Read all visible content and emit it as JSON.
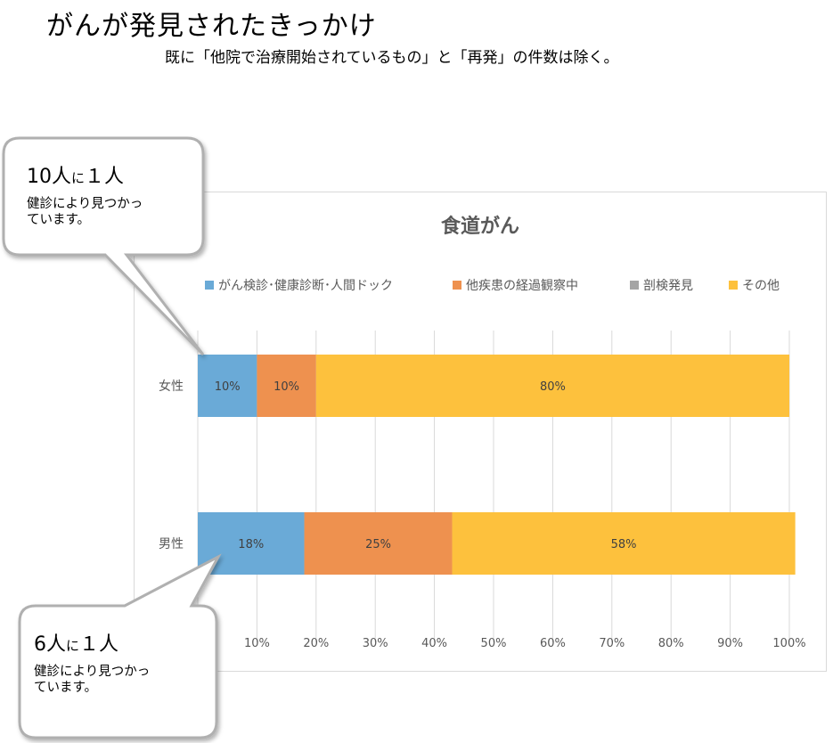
{
  "page": {
    "title": "がんが発見されたきっかけ",
    "subtitle": "既に「他院で治療開始されているもの」と「再発」の件数は除く。"
  },
  "callouts": [
    {
      "count_a": "10",
      "unit": "人",
      "particle": "に",
      "count_b": "１",
      "unit_b": "人",
      "line1": "健診により見つかっ",
      "line2": "ています。"
    },
    {
      "count_a": "6",
      "unit": "人",
      "particle": "に",
      "count_b": "１",
      "unit_b": "人",
      "line1": "健診により見つかっ",
      "line2": "ています。"
    }
  ],
  "colors": {
    "checkup": "#6aaad7",
    "observation": "#ee914f",
    "autopsy": "#a5a5a5",
    "other": "#fdc13d",
    "grid": "#d9d9d9",
    "text": "#595959"
  },
  "chart_data": {
    "type": "bar",
    "orientation": "horizontal",
    "stacked": true,
    "title": "食道がん",
    "categories": [
      "女性",
      "男性"
    ],
    "series": [
      {
        "name": "がん検診･健康診断･人間ドック",
        "values": [
          10,
          18
        ],
        "labels": [
          "10%",
          "18%"
        ],
        "color": "#6aaad7"
      },
      {
        "name": "他疾患の経過観察中",
        "values": [
          10,
          25
        ],
        "labels": [
          "10%",
          "25%"
        ],
        "color": "#ee914f"
      },
      {
        "name": "剖検発見",
        "values": [
          0,
          0
        ],
        "labels": [
          "",
          ""
        ],
        "color": "#a5a5a5"
      },
      {
        "name": "その他",
        "values": [
          80,
          58
        ],
        "labels": [
          "80%",
          "58%"
        ],
        "color": "#fdc13d"
      }
    ],
    "xlim": [
      0,
      100
    ],
    "xticks": [
      10,
      20,
      30,
      40,
      50,
      60,
      70,
      80,
      90,
      100
    ],
    "xtick_labels": [
      "10%",
      "20%",
      "30%",
      "40%",
      "50%",
      "60%",
      "70%",
      "80%",
      "90%",
      "100%"
    ],
    "grid": true,
    "legend": "top"
  }
}
